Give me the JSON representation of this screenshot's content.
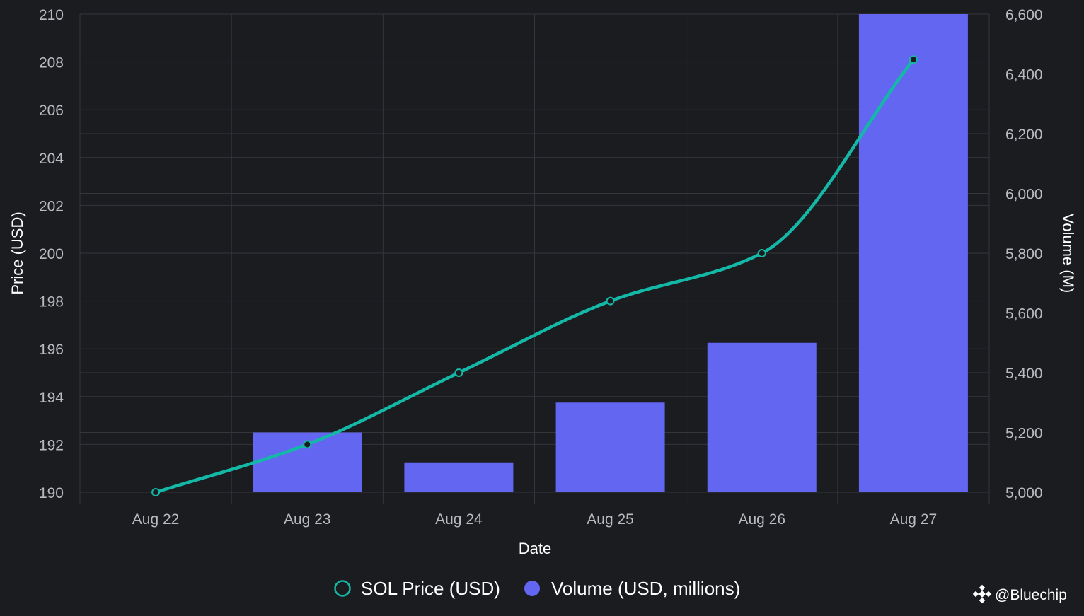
{
  "chart_data": {
    "type": "bar+line",
    "xlabel": "Date",
    "categories": [
      "Aug 22",
      "Aug 23",
      "Aug 24",
      "Aug 25",
      "Aug 26",
      "Aug 27"
    ],
    "y_left": {
      "label": "Price (USD)",
      "lim": [
        190,
        210
      ],
      "ticks": [
        190,
        192,
        194,
        196,
        198,
        200,
        202,
        204,
        206,
        208,
        210
      ]
    },
    "y_right": {
      "label": "Volume (M)",
      "lim": [
        5000,
        6600
      ],
      "ticks": [
        5000,
        5200,
        5400,
        5600,
        5800,
        6000,
        6200,
        6400,
        6600
      ],
      "tick_labels": [
        "5,000",
        "5,200",
        "5,400",
        "5,600",
        "5,800",
        "6,000",
        "6,200",
        "6,400",
        "6,600"
      ]
    },
    "series": [
      {
        "name": "SOL Price (USD)",
        "kind": "line",
        "axis": "left",
        "color": "#14b8a6",
        "values": [
          190,
          192,
          195,
          198,
          200,
          208.1
        ]
      },
      {
        "name": "Volume (USD, millions)",
        "kind": "bar",
        "axis": "right",
        "color": "#6366f1",
        "values": [
          5000,
          5200,
          5100,
          5300,
          5500,
          6600
        ]
      }
    ],
    "grid": true,
    "legend_position": "bottom-center"
  },
  "watermark": {
    "text": "@Bluechip",
    "icon": "binance-diamond-icon"
  },
  "colors": {
    "background": "#1b1c20",
    "grid": "#34363c",
    "tick_text": "#b9bbc1",
    "title_text": "#ffffff"
  }
}
